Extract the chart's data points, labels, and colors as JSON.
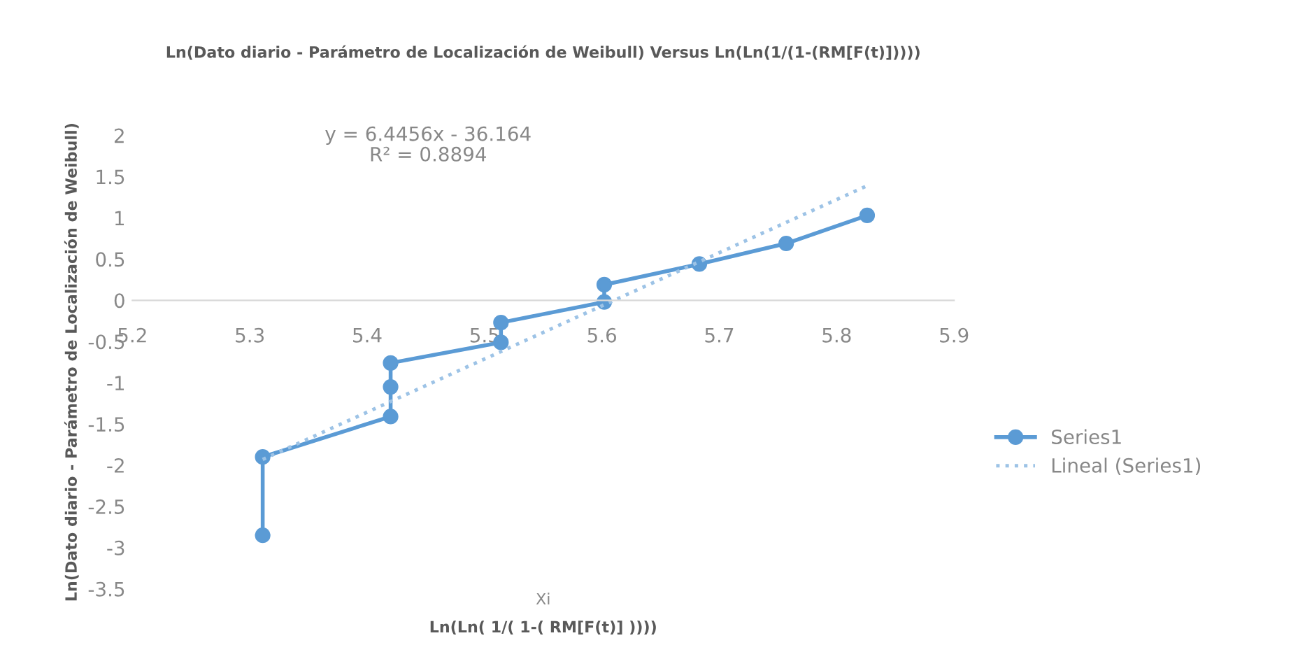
{
  "chart_data": {
    "type": "line",
    "title": "Ln(Dato diario - Parámetro de Localización de Weibull) Versus Ln(Ln(1/(1-(RM[F(t)]))))",
    "xlabel": "Ln(Ln( 1/( 1-( RM[F(t)] ))))",
    "ylabel": "Ln(Dato diario - Parámetro de Localización de Weibull)",
    "annotations": [
      "y = 6.4456x - 36.164",
      "R² = 0.8894",
      "Xi"
    ],
    "series": [
      {
        "name": "Series1",
        "color": "#5b9bd5",
        "marker": "circle",
        "line_style": "solid",
        "x": [
          5.311,
          5.311,
          5.42,
          5.42,
          5.42,
          5.514,
          5.514,
          5.602,
          5.602,
          5.683,
          5.757,
          5.826
        ],
        "values": [
          -2.85,
          -1.9,
          -1.41,
          -1.05,
          -0.76,
          -0.51,
          -0.27,
          -0.02,
          0.19,
          0.44,
          0.69,
          1.03
        ]
      },
      {
        "name": "Lineal (Series1)",
        "color": "#9dc3e6",
        "marker": "none",
        "line_style": "dotted",
        "x": [
          5.311,
          5.826
        ],
        "values": [
          -1.93,
          1.39
        ]
      }
    ],
    "xlim": [
      5.2,
      5.9
    ],
    "xticks": [
      5.2,
      5.3,
      5.4,
      5.5,
      5.6,
      5.7,
      5.8,
      5.9
    ],
    "ylim": [
      -3.5,
      2
    ],
    "yticks": [
      -3.5,
      -3,
      -2.5,
      -2,
      -1.5,
      -1,
      -0.5,
      0,
      0.5,
      1,
      1.5,
      2
    ],
    "grid": false,
    "legend": "right"
  }
}
